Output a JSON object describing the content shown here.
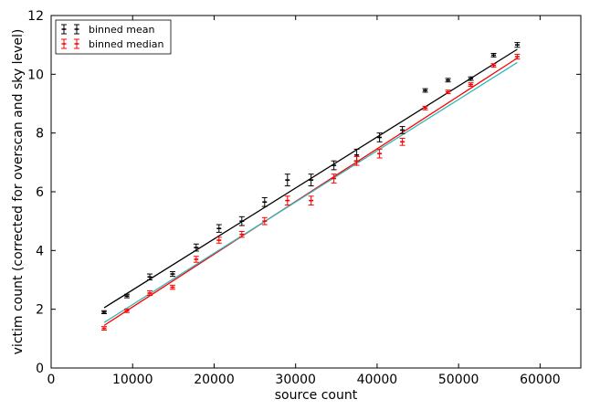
{
  "chart_data": {
    "type": "scatter",
    "title": "",
    "xlabel": "source count",
    "ylabel": "victim count (corrected for overscan and sky level)",
    "xlim": [
      0,
      65000
    ],
    "ylim": [
      0,
      12
    ],
    "xticks": [
      0,
      10000,
      20000,
      30000,
      40000,
      50000,
      60000
    ],
    "yticks": [
      0,
      2,
      4,
      6,
      8,
      10,
      12
    ],
    "xtick_labels": [
      "0",
      "10000",
      "20000",
      "30000",
      "40000",
      "50000",
      "60000"
    ],
    "ytick_labels": [
      "0",
      "2",
      "4",
      "6",
      "8",
      "10",
      "12"
    ],
    "grid": false,
    "legend_position": "top-left",
    "series": [
      {
        "name": "binned mean",
        "color": "#000000",
        "x": [
          6500,
          9300,
          12100,
          14900,
          17800,
          20600,
          23400,
          26200,
          29000,
          31900,
          34700,
          37500,
          40300,
          43100,
          45900,
          48700,
          51500,
          54300,
          57200
        ],
        "y": [
          1.9,
          2.45,
          3.1,
          3.2,
          4.1,
          4.75,
          5.0,
          5.65,
          6.4,
          6.4,
          6.9,
          7.25,
          7.85,
          8.1,
          9.45,
          9.8,
          9.85,
          10.65,
          11.0
        ],
        "err": [
          0.05,
          0.06,
          0.1,
          0.08,
          0.12,
          0.13,
          0.15,
          0.15,
          0.2,
          0.2,
          0.15,
          0.2,
          0.15,
          0.12,
          0.06,
          0.06,
          0.06,
          0.06,
          0.08
        ]
      },
      {
        "name": "binned median",
        "color": "#ff0000",
        "x": [
          6500,
          9300,
          12100,
          14900,
          17800,
          20600,
          23400,
          26200,
          29000,
          31900,
          34700,
          37500,
          40300,
          43100,
          45900,
          48700,
          51500,
          54300,
          57200
        ],
        "y": [
          1.35,
          1.95,
          2.55,
          2.75,
          3.7,
          4.35,
          4.55,
          5.0,
          5.7,
          5.7,
          6.45,
          7.05,
          7.3,
          7.7,
          8.85,
          9.4,
          9.65,
          10.3,
          10.6
        ],
        "err": [
          0.06,
          0.06,
          0.08,
          0.07,
          0.1,
          0.1,
          0.1,
          0.12,
          0.15,
          0.15,
          0.15,
          0.15,
          0.15,
          0.12,
          0.06,
          0.06,
          0.06,
          0.06,
          0.08
        ]
      }
    ],
    "fit_lines": [
      {
        "color": "#000000",
        "x": [
          6500,
          57200
        ],
        "y": [
          2.05,
          10.85
        ]
      },
      {
        "color": "#ff0000",
        "x": [
          6500,
          57200
        ],
        "y": [
          1.45,
          10.55
        ]
      },
      {
        "color": "#2eb8b8",
        "x": [
          6500,
          57200
        ],
        "y": [
          1.55,
          10.4
        ]
      }
    ]
  }
}
